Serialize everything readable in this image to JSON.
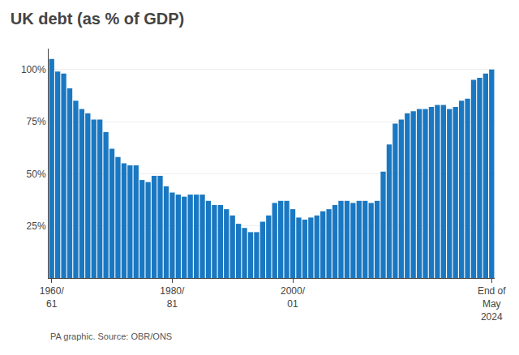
{
  "chart_data": {
    "type": "bar",
    "title": "UK debt (as % of GDP)",
    "annotations": [
      "PA graphic. Source: OBR/ONS"
    ],
    "categories": [
      "1960/\n61",
      null,
      null,
      null,
      null,
      null,
      null,
      null,
      null,
      null,
      null,
      null,
      null,
      null,
      null,
      null,
      null,
      null,
      null,
      null,
      "1980/\n81",
      null,
      null,
      null,
      null,
      null,
      null,
      null,
      null,
      null,
      null,
      null,
      null,
      null,
      null,
      null,
      null,
      null,
      null,
      null,
      "2000/\n01",
      null,
      null,
      null,
      null,
      null,
      null,
      null,
      null,
      null,
      null,
      null,
      null,
      null,
      null,
      null,
      null,
      null,
      null,
      null,
      null,
      null,
      null,
      null,
      null,
      null,
      null,
      null,
      null,
      null,
      null,
      null,
      null,
      "End of\nMay\n2024"
    ],
    "values": [
      105,
      99,
      98,
      91,
      85,
      81,
      79,
      76,
      76,
      70,
      62,
      58,
      55,
      54,
      54,
      47,
      46,
      49,
      49,
      44,
      41,
      40,
      39,
      40,
      40,
      40,
      37,
      35,
      35,
      33,
      30,
      26,
      24,
      22,
      22,
      27,
      30,
      36,
      37,
      37,
      33,
      29,
      28,
      29,
      30,
      32,
      33,
      35,
      37,
      37,
      36,
      37,
      37,
      36,
      37,
      51,
      64,
      74,
      76,
      79,
      80,
      81,
      81,
      82,
      83,
      83,
      81,
      82,
      85,
      86,
      95,
      96,
      98,
      100
    ],
    "color": "#1a78c2",
    "ylim": [
      0,
      110
    ],
    "yticks": [
      {
        "value": 25,
        "label": "25%"
      },
      {
        "value": 50,
        "label": "50%"
      },
      {
        "value": 75,
        "label": "75%"
      },
      {
        "value": 100,
        "label": "100%"
      }
    ],
    "grid": true
  }
}
